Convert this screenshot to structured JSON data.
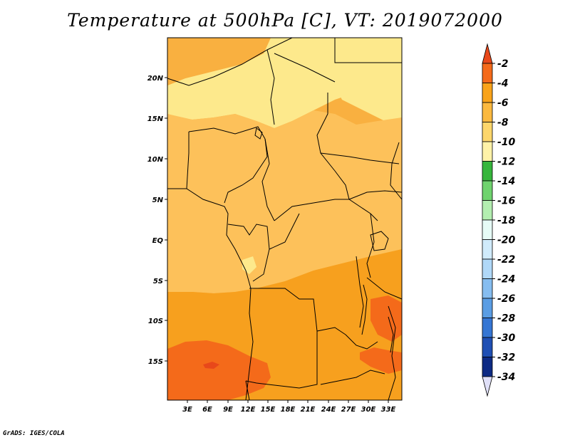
{
  "title": "Temperature at 500hPa [C], VT: 2019072000",
  "credit": "GrADS: IGES/COLA",
  "map": {
    "lat_labels": [
      "20N",
      "15N",
      "10N",
      "5N",
      "EQ",
      "5S",
      "10S",
      "15S"
    ],
    "lon_labels": [
      "3E",
      "6E",
      "9E",
      "12E",
      "15E",
      "18E",
      "21E",
      "24E",
      "27E",
      "30E",
      "33E"
    ],
    "colors": {
      "light_yellow": "#fde98c",
      "pale_orange": "#fdc15a",
      "orange": "#f9b040",
      "dark_orange": "#f7a01e",
      "red_orange": "#f46a1a",
      "red": "#e8481a",
      "border": "#000000"
    }
  },
  "colorbar": {
    "labels": [
      "-2",
      "-4",
      "-6",
      "-8",
      "-10",
      "-12",
      "-14",
      "-16",
      "-18",
      "-20",
      "-22",
      "-24",
      "-26",
      "-28",
      "-30",
      "-32",
      "-34"
    ],
    "colors": [
      "#e8481a",
      "#f46a1a",
      "#f9a31a",
      "#fbb93f",
      "#fdd66b",
      "#fef2a8",
      "#36b63c",
      "#6fd36e",
      "#b3eeb0",
      "#e6fbf6",
      "#d0ebfb",
      "#b0d8f8",
      "#86bdf0",
      "#5a9de4",
      "#3576d4",
      "#1f4fb4",
      "#0d2a84",
      "#0a1560",
      "#e0e0f8"
    ]
  }
}
